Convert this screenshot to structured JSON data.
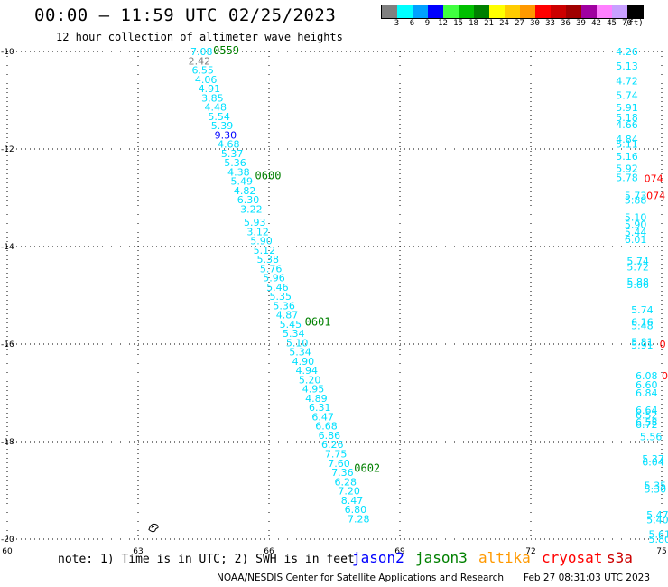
{
  "header": {
    "title": "00:00 — 11:59 UTC 02/25/2023",
    "subtitle": "12 hour collection of altimeter wave heights"
  },
  "colorbar": {
    "unit_label": "(ft)",
    "levels": [
      {
        "label": "3",
        "color": "#808080"
      },
      {
        "label": "6",
        "color": "#00ffff"
      },
      {
        "label": "9",
        "color": "#00a0ff"
      },
      {
        "label": "12",
        "color": "#0000ff"
      },
      {
        "label": "15",
        "color": "#40ff40"
      },
      {
        "label": "18",
        "color": "#00c000"
      },
      {
        "label": "21",
        "color": "#008000"
      },
      {
        "label": "24",
        "color": "#ffff00"
      },
      {
        "label": "27",
        "color": "#ffcc00"
      },
      {
        "label": "30",
        "color": "#ff9900"
      },
      {
        "label": "33",
        "color": "#ff0000"
      },
      {
        "label": "36",
        "color": "#cc0000"
      },
      {
        "label": "39",
        "color": "#a00000"
      },
      {
        "label": "42",
        "color": "#a000a0"
      },
      {
        "label": "45",
        "color": "#ff80ff"
      },
      {
        "label": "70",
        "color": "#c8a0ff"
      },
      {
        "label": "",
        "color": "#000000"
      }
    ]
  },
  "footer": {
    "note": "note: 1) Time is in UTC; 2) SWH is in feet",
    "satellites": [
      {
        "label": "jason2",
        "color": "#0000ff"
      },
      {
        "label": "jason3",
        "color": "#008000"
      },
      {
        "label": "altika",
        "color": "#ff9900"
      },
      {
        "label": "cryosat",
        "color": "#ff0000"
      },
      {
        "label": "s3a",
        "color": "#cc0000"
      }
    ],
    "credit": "NOAA/NESDIS Center for Satellite Applications and Research",
    "timestamp": "Feb 27 08:31:03 UTC 2023"
  },
  "chart_data": {
    "type": "scatter",
    "title": "00:00 — 11:59 UTC 02/25/2023",
    "subtitle": "12 hour collection of altimeter wave heights",
    "xlim": [
      60,
      75
    ],
    "ylim": [
      -20,
      -10
    ],
    "x_ticks": [
      60,
      63,
      66,
      69,
      72,
      75
    ],
    "y_ticks": [
      -10,
      -12,
      -14,
      -16,
      -18,
      -20
    ],
    "grid": true,
    "value_unit": "ft",
    "series": [
      {
        "color": "#00e0ff",
        "points": [
          {
            "x": 64.2,
            "y": -10.0,
            "v": "7.08",
            "c": "#00e0ff"
          },
          {
            "x": 64.15,
            "y": -10.19,
            "v": "2.42",
            "c": "#808080"
          },
          {
            "x": 64.23,
            "y": -10.38,
            "v": "6.55",
            "c": "#00e0ff"
          },
          {
            "x": 64.3,
            "y": -10.57,
            "v": "4.06",
            "c": "#00e0ff"
          },
          {
            "x": 64.38,
            "y": -10.76,
            "v": "4.91",
            "c": "#00e0ff"
          },
          {
            "x": 64.45,
            "y": -10.95,
            "v": "3.85",
            "c": "#00e0ff"
          },
          {
            "x": 64.52,
            "y": -11.14,
            "v": "4.48",
            "c": "#00e0ff"
          },
          {
            "x": 64.6,
            "y": -11.33,
            "v": "5.54",
            "c": "#00e0ff"
          },
          {
            "x": 64.67,
            "y": -11.52,
            "v": "5.39",
            "c": "#00e0ff"
          },
          {
            "x": 64.75,
            "y": -11.71,
            "v": "9.30",
            "c": "#0000ff"
          },
          {
            "x": 64.82,
            "y": -11.9,
            "v": "4.68",
            "c": "#00e0ff"
          },
          {
            "x": 64.9,
            "y": -12.09,
            "v": "5.37",
            "c": "#00e0ff"
          },
          {
            "x": 64.97,
            "y": -12.28,
            "v": "5.36",
            "c": "#00e0ff"
          },
          {
            "x": 65.05,
            "y": -12.47,
            "v": "4.38",
            "c": "#00e0ff"
          },
          {
            "x": 65.12,
            "y": -12.66,
            "v": "5.49",
            "c": "#00e0ff"
          },
          {
            "x": 65.19,
            "y": -12.85,
            "v": "4.82",
            "c": "#00e0ff"
          },
          {
            "x": 65.27,
            "y": -13.04,
            "v": "6.30",
            "c": "#00e0ff"
          },
          {
            "x": 65.34,
            "y": -13.23,
            "v": "3.22",
            "c": "#00e0ff"
          },
          {
            "x": 65.42,
            "y": -13.5,
            "v": "5.93",
            "c": "#00e0ff"
          },
          {
            "x": 65.49,
            "y": -13.69,
            "v": "3.12",
            "c": "#00e0ff"
          },
          {
            "x": 65.57,
            "y": -13.88,
            "v": "5.90",
            "c": "#00e0ff"
          },
          {
            "x": 65.64,
            "y": -14.07,
            "v": "5.12",
            "c": "#00e0ff"
          },
          {
            "x": 65.72,
            "y": -14.26,
            "v": "5.38",
            "c": "#00e0ff"
          },
          {
            "x": 65.79,
            "y": -14.45,
            "v": "5.76",
            "c": "#00e0ff"
          },
          {
            "x": 65.86,
            "y": -14.64,
            "v": "5.96",
            "c": "#00e0ff"
          },
          {
            "x": 65.94,
            "y": -14.83,
            "v": "5.46",
            "c": "#00e0ff"
          },
          {
            "x": 66.01,
            "y": -15.02,
            "v": "5.35",
            "c": "#00e0ff"
          },
          {
            "x": 66.09,
            "y": -15.21,
            "v": "5.36",
            "c": "#00e0ff"
          },
          {
            "x": 66.16,
            "y": -15.4,
            "v": "4.87",
            "c": "#00e0ff"
          },
          {
            "x": 66.24,
            "y": -15.59,
            "v": "5.45",
            "c": "#00e0ff"
          },
          {
            "x": 66.31,
            "y": -15.78,
            "v": "5.34",
            "c": "#00e0ff"
          },
          {
            "x": 66.39,
            "y": -15.97,
            "v": "5.10",
            "c": "#00e0ff"
          },
          {
            "x": 66.46,
            "y": -16.16,
            "v": "5.34",
            "c": "#00e0ff"
          },
          {
            "x": 66.53,
            "y": -16.35,
            "v": "4.90",
            "c": "#00e0ff"
          },
          {
            "x": 66.61,
            "y": -16.54,
            "v": "4.94",
            "c": "#00e0ff"
          },
          {
            "x": 66.68,
            "y": -16.73,
            "v": "5.20",
            "c": "#00e0ff"
          },
          {
            "x": 66.76,
            "y": -16.92,
            "v": "4.95",
            "c": "#00e0ff"
          },
          {
            "x": 66.83,
            "y": -17.11,
            "v": "4.89",
            "c": "#00e0ff"
          },
          {
            "x": 66.91,
            "y": -17.3,
            "v": "6.31",
            "c": "#00e0ff"
          },
          {
            "x": 66.98,
            "y": -17.49,
            "v": "6.47",
            "c": "#00e0ff"
          },
          {
            "x": 67.06,
            "y": -17.68,
            "v": "6.68",
            "c": "#00e0ff"
          },
          {
            "x": 67.13,
            "y": -17.87,
            "v": "6.86",
            "c": "#00e0ff"
          },
          {
            "x": 67.2,
            "y": -18.06,
            "v": "6.26",
            "c": "#00e0ff"
          },
          {
            "x": 67.28,
            "y": -18.25,
            "v": "7.75",
            "c": "#00e0ff"
          },
          {
            "x": 67.35,
            "y": -18.44,
            "v": "7.60",
            "c": "#00e0ff"
          },
          {
            "x": 67.43,
            "y": -18.63,
            "v": "7.36",
            "c": "#00e0ff"
          },
          {
            "x": 67.5,
            "y": -18.82,
            "v": "6.28",
            "c": "#00e0ff"
          },
          {
            "x": 67.58,
            "y": -19.01,
            "v": "7.20",
            "c": "#00e0ff"
          },
          {
            "x": 67.65,
            "y": -19.2,
            "v": "8.47",
            "c": "#00e0ff"
          },
          {
            "x": 67.73,
            "y": -19.39,
            "v": "6.80",
            "c": "#00e0ff"
          },
          {
            "x": 67.8,
            "y": -19.58,
            "v": "7.28",
            "c": "#00e0ff"
          }
        ]
      },
      {
        "color": "#00e0ff",
        "points": [
          {
            "x": 73.95,
            "y": -10.0,
            "v": "4.26",
            "c": "#00e0ff"
          },
          {
            "x": 73.95,
            "y": -10.3,
            "v": "5.13",
            "c": "#00e0ff"
          },
          {
            "x": 73.95,
            "y": -10.6,
            "v": "4.72",
            "c": "#00e0ff"
          },
          {
            "x": 73.95,
            "y": -10.9,
            "v": "5.74",
            "c": "#00e0ff"
          },
          {
            "x": 73.95,
            "y": -11.15,
            "v": "5.91",
            "c": "#00e0ff"
          },
          {
            "x": 73.95,
            "y": -11.35,
            "v": "5.18",
            "c": "#00e0ff"
          },
          {
            "x": 73.95,
            "y": -11.5,
            "v": "4.66",
            "c": "#00e0ff"
          },
          {
            "x": 73.95,
            "y": -11.8,
            "v": "4.84",
            "c": "#00e0ff"
          },
          {
            "x": 73.95,
            "y": -11.9,
            "v": "5.11",
            "c": "#00e0ff"
          },
          {
            "x": 73.95,
            "y": -12.15,
            "v": "5.16",
            "c": "#00e0ff"
          },
          {
            "x": 73.95,
            "y": -12.4,
            "v": "5.92",
            "c": "#00e0ff"
          },
          {
            "x": 73.95,
            "y": -12.58,
            "v": "5.78",
            "c": "#00e0ff"
          },
          {
            "x": 74.15,
            "y": -12.95,
            "v": "5.73",
            "c": "#00e0ff"
          },
          {
            "x": 74.15,
            "y": -13.05,
            "v": "5.88",
            "c": "#00e0ff"
          },
          {
            "x": 74.15,
            "y": -13.4,
            "v": "5.10",
            "c": "#00e0ff"
          },
          {
            "x": 74.15,
            "y": -13.55,
            "v": "5.90",
            "c": "#00e0ff"
          },
          {
            "x": 74.15,
            "y": -13.7,
            "v": "5.44",
            "c": "#00e0ff"
          },
          {
            "x": 74.15,
            "y": -13.85,
            "v": "6.01",
            "c": "#00e0ff"
          },
          {
            "x": 74.2,
            "y": -14.3,
            "v": "5.74",
            "c": "#00e0ff"
          },
          {
            "x": 74.2,
            "y": -14.42,
            "v": "5.72",
            "c": "#00e0ff"
          },
          {
            "x": 74.2,
            "y": -14.72,
            "v": "5.88",
            "c": "#00e0ff"
          },
          {
            "x": 74.2,
            "y": -14.78,
            "v": "5.66",
            "c": "#00e0ff"
          },
          {
            "x": 74.3,
            "y": -15.3,
            "v": "5.74",
            "c": "#00e0ff"
          },
          {
            "x": 74.3,
            "y": -15.55,
            "v": "6.16",
            "c": "#00e0ff"
          },
          {
            "x": 74.3,
            "y": -15.62,
            "v": "5.48",
            "c": "#00e0ff"
          },
          {
            "x": 74.3,
            "y": -15.95,
            "v": "5.81",
            "c": "#00e0ff"
          },
          {
            "x": 74.3,
            "y": -16.02,
            "v": "5.91",
            "c": "#00e0ff"
          },
          {
            "x": 74.4,
            "y": -16.65,
            "v": "6.08",
            "c": "#00e0ff"
          },
          {
            "x": 74.4,
            "y": -16.83,
            "v": "6.60",
            "c": "#00e0ff"
          },
          {
            "x": 74.4,
            "y": -17.0,
            "v": "6.84",
            "c": "#00e0ff"
          },
          {
            "x": 74.4,
            "y": -17.35,
            "v": "6.64",
            "c": "#00e0ff"
          },
          {
            "x": 74.4,
            "y": -17.45,
            "v": "6.52",
            "c": "#00e0ff"
          },
          {
            "x": 74.4,
            "y": -17.6,
            "v": "6.58",
            "c": "#00e0ff"
          },
          {
            "x": 74.4,
            "y": -17.65,
            "v": "6.72",
            "c": "#00e0ff"
          },
          {
            "x": 74.5,
            "y": -17.9,
            "v": "5.56",
            "c": "#00e0ff"
          },
          {
            "x": 74.55,
            "y": -18.35,
            "v": "5.37",
            "c": "#00e0ff"
          },
          {
            "x": 74.55,
            "y": -18.42,
            "v": "6.04",
            "c": "#00e0ff"
          },
          {
            "x": 74.6,
            "y": -18.9,
            "v": "5.35",
            "c": "#00e0ff"
          },
          {
            "x": 74.6,
            "y": -18.97,
            "v": "5.30",
            "c": "#00e0ff"
          },
          {
            "x": 74.65,
            "y": -19.5,
            "v": "5.47",
            "c": "#00e0ff"
          },
          {
            "x": 74.65,
            "y": -19.6,
            "v": "5.40",
            "c": "#00e0ff"
          },
          {
            "x": 74.7,
            "y": -19.9,
            "v": "5.61",
            "c": "#00e0ff"
          },
          {
            "x": 74.7,
            "y": -20.0,
            "v": "5.80",
            "c": "#00e0ff"
          }
        ]
      },
      {
        "color": "#ff0000",
        "points": [
          {
            "x": 74.6,
            "y": -12.6,
            "v": "074",
            "c": "#ff0000"
          },
          {
            "x": 74.65,
            "y": -12.95,
            "v": "074",
            "c": "#ff0000"
          },
          {
            "x": 74.95,
            "y": -16.0,
            "v": "0",
            "c": "#ff0000"
          },
          {
            "x": 75.0,
            "y": -16.65,
            "v": "0",
            "c": "#ff0000"
          }
        ]
      }
    ],
    "time_labels": [
      {
        "x": 64.72,
        "y": -9.98,
        "text": "0559",
        "color": "#008000"
      },
      {
        "x": 65.68,
        "y": -12.55,
        "text": "0600",
        "color": "#008000"
      },
      {
        "x": 66.82,
        "y": -15.55,
        "text": "0601",
        "color": "#008000"
      },
      {
        "x": 67.95,
        "y": -18.55,
        "text": "0602",
        "color": "#008000"
      }
    ],
    "land_mark": {
      "x": 63.35,
      "y": -19.75
    }
  }
}
